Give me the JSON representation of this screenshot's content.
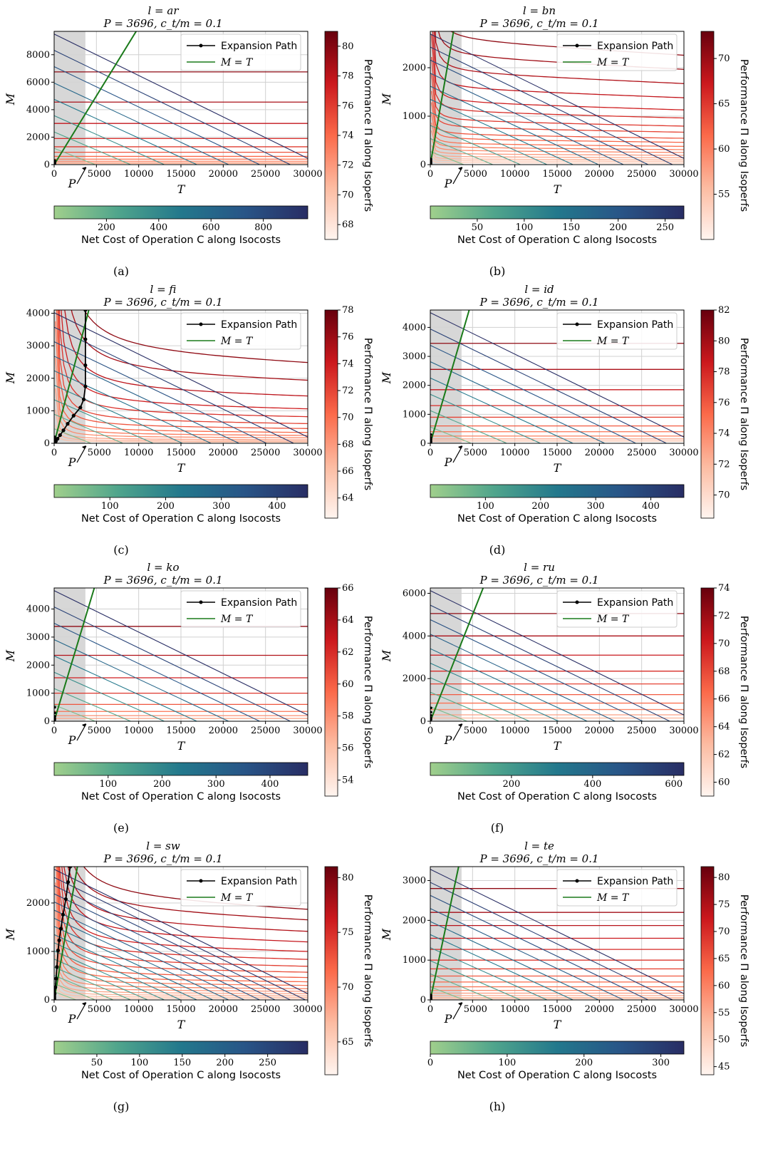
{
  "figure": {
    "expansion_label": "Expansion Path",
    "mt_label": "M = T",
    "perf_label": "Performance Π along Isoperfs",
    "cost_label": "Net Cost of Operation C along Isocosts",
    "p_label": "P",
    "xlabel": "T",
    "ylabel": "M",
    "colors": {
      "expansion": "#000000",
      "mt_line": "#1a7a1a",
      "shade": "#d3d3d3",
      "grid": "#d0d0d0"
    }
  },
  "chart_data": [
    {
      "id": "a",
      "type": "line",
      "caption": "(a)",
      "title": "l = ar",
      "subtitle": "P = 3696, c_t/m = 0.1",
      "xlabel": "T",
      "ylabel": "M",
      "xlim": [
        0,
        30000
      ],
      "ylim": [
        0,
        9700
      ],
      "xticks": [
        0,
        5000,
        10000,
        15000,
        20000,
        25000,
        30000
      ],
      "yticks": [
        0,
        2000,
        4000,
        6000,
        8000
      ],
      "perf_ticks": [
        68,
        70,
        72,
        74,
        76,
        78,
        80
      ],
      "perf_range": [
        67,
        81
      ],
      "cost_ticks": [
        200,
        400,
        600,
        800
      ],
      "cost_range": [
        0,
        970
      ],
      "isoperf_levels": [
        6750,
        4550,
        3000,
        1900,
        1300,
        900,
        600,
        400,
        250,
        150,
        80
      ],
      "isoperf_curve": 0,
      "isocost_count": 8,
      "expansion_path": []
    },
    {
      "id": "b",
      "type": "line",
      "caption": "(b)",
      "title": "l = bn",
      "subtitle": "P = 3696, c_t/m = 0.1",
      "xlabel": "T",
      "ylabel": "M",
      "xlim": [
        0,
        30000
      ],
      "ylim": [
        0,
        2750
      ],
      "xticks": [
        0,
        5000,
        10000,
        15000,
        20000,
        25000,
        30000
      ],
      "yticks": [
        0,
        1000,
        2000
      ],
      "perf_ticks": [
        55,
        60,
        65,
        70
      ],
      "perf_range": [
        50,
        73
      ],
      "cost_ticks": [
        50,
        100,
        150,
        200,
        250
      ],
      "cost_range": [
        0,
        270
      ],
      "isoperf_levels": [
        2700,
        2350,
        2000,
        1650,
        1350,
        1150,
        950,
        800,
        650,
        550,
        450,
        370,
        300,
        230,
        170,
        120,
        80,
        40
      ],
      "isoperf_curve": 0.06,
      "isocost_count": 10,
      "expansion_path": []
    },
    {
      "id": "c",
      "type": "line",
      "caption": "(c)",
      "title": "l = fi",
      "subtitle": "P = 3696, c_t/m = 0.1",
      "xlabel": "T",
      "ylabel": "M",
      "xlim": [
        0,
        30000
      ],
      "ylim": [
        0,
        4100
      ],
      "xticks": [
        0,
        5000,
        10000,
        15000,
        20000,
        25000,
        30000
      ],
      "yticks": [
        0,
        1000,
        2000,
        3000,
        4000
      ],
      "perf_ticks": [
        64,
        66,
        68,
        70,
        72,
        74,
        76,
        78
      ],
      "perf_range": [
        62.5,
        78
      ],
      "cost_ticks": [
        100,
        200,
        300,
        400
      ],
      "cost_range": [
        0,
        455
      ],
      "isoperf_levels": [
        4100,
        3200,
        2400,
        1750,
        1350,
        1000,
        750,
        550,
        400,
        280,
        180,
        110,
        60
      ],
      "isoperf_curve": 0.55,
      "isocost_count": 9,
      "expansion_path": [
        [
          0,
          0
        ],
        [
          200,
          60
        ],
        [
          400,
          140
        ],
        [
          700,
          250
        ],
        [
          1100,
          400
        ],
        [
          1600,
          600
        ],
        [
          2300,
          850
        ],
        [
          3100,
          1100
        ],
        [
          3500,
          1350
        ],
        [
          3696,
          1750
        ],
        [
          3696,
          2400
        ],
        [
          3696,
          3200
        ],
        [
          3696,
          4100
        ]
      ]
    },
    {
      "id": "d",
      "type": "line",
      "caption": "(d)",
      "title": "l = id",
      "subtitle": "P = 3696, c_t/m = 0.1",
      "xlabel": "T",
      "ylabel": "M",
      "xlim": [
        0,
        30000
      ],
      "ylim": [
        0,
        4600
      ],
      "xticks": [
        0,
        5000,
        10000,
        15000,
        20000,
        25000,
        30000
      ],
      "yticks": [
        0,
        1000,
        2000,
        3000,
        4000
      ],
      "perf_ticks": [
        70,
        72,
        74,
        76,
        78,
        80,
        82
      ],
      "perf_range": [
        68.5,
        82
      ],
      "cost_ticks": [
        100,
        200,
        300,
        400
      ],
      "cost_range": [
        0,
        460
      ],
      "isoperf_levels": [
        3450,
        2550,
        1850,
        1300,
        900,
        600,
        400,
        250,
        150,
        80
      ],
      "isoperf_curve": 0,
      "isocost_count": 8,
      "expansion_path": []
    },
    {
      "id": "e",
      "type": "line",
      "caption": "(e)",
      "title": "l = ko",
      "subtitle": "P = 3696, c_t/m = 0.1",
      "xlabel": "T",
      "ylabel": "M",
      "xlim": [
        0,
        30000
      ],
      "ylim": [
        0,
        4750
      ],
      "xticks": [
        0,
        5000,
        10000,
        15000,
        20000,
        25000,
        30000
      ],
      "yticks": [
        0,
        1000,
        2000,
        3000,
        4000
      ],
      "perf_ticks": [
        54,
        56,
        58,
        60,
        62,
        64,
        66
      ],
      "perf_range": [
        53,
        66
      ],
      "cost_ticks": [
        100,
        200,
        300,
        400
      ],
      "cost_range": [
        0,
        470
      ],
      "isoperf_levels": [
        3380,
        2350,
        1550,
        1000,
        600,
        350,
        200,
        100
      ],
      "isoperf_curve": 0,
      "isocost_count": 8,
      "expansion_path": []
    },
    {
      "id": "f",
      "type": "line",
      "caption": "(f)",
      "title": "l = ru",
      "subtitle": "P = 3696, c_t/m = 0.1",
      "xlabel": "T",
      "ylabel": "M",
      "xlim": [
        0,
        30000
      ],
      "ylim": [
        0,
        6250
      ],
      "xticks": [
        0,
        5000,
        10000,
        15000,
        20000,
        25000,
        30000
      ],
      "yticks": [
        0,
        2000,
        4000,
        6000
      ],
      "perf_ticks": [
        60,
        62,
        64,
        66,
        68,
        70,
        72,
        74
      ],
      "perf_range": [
        59,
        74
      ],
      "cost_ticks": [
        200,
        400,
        600
      ],
      "cost_range": [
        0,
        625
      ],
      "isoperf_levels": [
        5050,
        4000,
        3100,
        2350,
        1750,
        1250,
        850,
        550,
        300,
        150
      ],
      "isoperf_curve": 0,
      "isocost_count": 9,
      "expansion_path": []
    },
    {
      "id": "g",
      "type": "line",
      "caption": "(g)",
      "title": "l = sw",
      "subtitle": "P = 3696, c_t/m = 0.1",
      "xlabel": "T",
      "ylabel": "M",
      "xlim": [
        0,
        30000
      ],
      "ylim": [
        0,
        2750
      ],
      "xticks": [
        0,
        5000,
        10000,
        15000,
        20000,
        25000,
        30000
      ],
      "yticks": [
        0,
        1000,
        2000
      ],
      "perf_ticks": [
        65,
        70,
        75,
        80
      ],
      "perf_range": [
        62,
        81
      ],
      "cost_ticks": [
        50,
        100,
        150,
        200,
        250
      ],
      "cost_range": [
        0,
        297
      ],
      "isoperf_levels": [
        2750,
        2430,
        2080,
        1760,
        1470,
        1230,
        1020,
        840,
        680,
        550,
        440,
        340,
        260,
        190,
        130,
        80,
        40
      ],
      "isoperf_curve": 0.35,
      "isocost_count": 16,
      "expansion_path": [
        [
          0,
          0
        ],
        [
          60,
          130
        ],
        [
          140,
          260
        ],
        [
          230,
          440
        ],
        [
          330,
          680
        ],
        [
          460,
          1020
        ],
        [
          600,
          1230
        ],
        [
          800,
          1470
        ],
        [
          1050,
          1760
        ],
        [
          1380,
          2080
        ],
        [
          1650,
          2430
        ],
        [
          1900,
          2750
        ]
      ]
    },
    {
      "id": "h",
      "type": "line",
      "caption": "(h)",
      "title": "l = te",
      "subtitle": "P = 3696, c_t/m = 0.1",
      "xlabel": "T",
      "ylabel": "M",
      "xlim": [
        0,
        30000
      ],
      "ylim": [
        0,
        3350
      ],
      "xticks": [
        0,
        5000,
        10000,
        15000,
        20000,
        25000,
        30000
      ],
      "yticks": [
        0,
        1000,
        2000,
        3000
      ],
      "perf_ticks": [
        45,
        50,
        55,
        60,
        65,
        70,
        75,
        80
      ],
      "perf_range": [
        43.5,
        82
      ],
      "cost_ticks": [
        0,
        100,
        200,
        300
      ],
      "cost_range": [
        0,
        330
      ],
      "isoperf_levels": [
        2800,
        2200,
        1870,
        1550,
        1270,
        1000,
        780,
        600,
        450,
        330,
        240,
        170,
        110,
        60,
        30
      ],
      "isoperf_curve": 0,
      "isocost_count": 10,
      "expansion_path": []
    }
  ]
}
